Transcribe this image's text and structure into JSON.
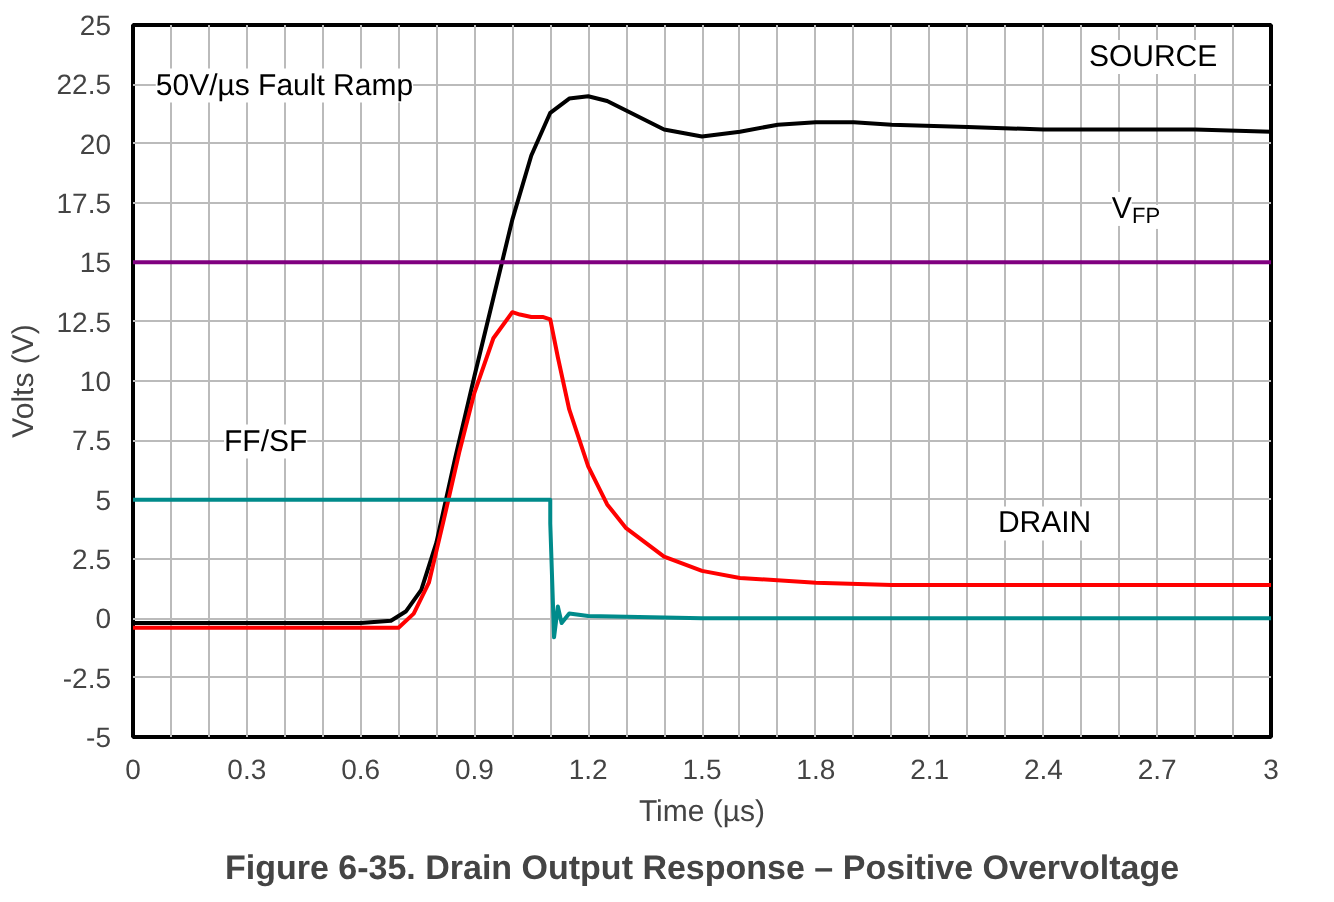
{
  "chart_data": {
    "type": "line",
    "title": "Figure 6-35. Drain Output Response – Positive Overvoltage",
    "xlabel": "Time (µs)",
    "ylabel": "Volts (V)",
    "xlim": [
      0,
      3
    ],
    "ylim": [
      -5,
      25
    ],
    "xticks": [
      0,
      0.3,
      0.6,
      0.9,
      1.2,
      1.5,
      1.8,
      2.1,
      2.4,
      2.7,
      3
    ],
    "yticks": [
      -5,
      -2.5,
      0,
      2.5,
      5,
      7.5,
      10,
      12.5,
      15,
      17.5,
      20,
      22.5,
      25
    ],
    "grid": true,
    "line_style": "solid",
    "series": [
      {
        "name": "SOURCE",
        "color": "#000000",
        "x": [
          0,
          0.2,
          0.4,
          0.6,
          0.68,
          0.72,
          0.76,
          0.8,
          0.85,
          0.9,
          0.95,
          1.0,
          1.05,
          1.1,
          1.15,
          1.2,
          1.25,
          1.3,
          1.4,
          1.5,
          1.6,
          1.7,
          1.8,
          1.9,
          2.0,
          2.2,
          2.4,
          2.6,
          2.8,
          3.0
        ],
        "values": [
          -0.2,
          -0.2,
          -0.2,
          -0.2,
          -0.1,
          0.3,
          1.2,
          3.2,
          6.8,
          10.2,
          13.5,
          16.8,
          19.5,
          21.3,
          21.9,
          22.0,
          21.8,
          21.4,
          20.6,
          20.3,
          20.5,
          20.8,
          20.9,
          20.9,
          20.8,
          20.7,
          20.6,
          20.6,
          20.6,
          20.5
        ]
      },
      {
        "name": "DRAIN",
        "color": "#ff0000",
        "x": [
          0,
          0.2,
          0.4,
          0.6,
          0.7,
          0.74,
          0.78,
          0.82,
          0.86,
          0.9,
          0.95,
          1.0,
          1.02,
          1.05,
          1.08,
          1.1,
          1.12,
          1.15,
          1.2,
          1.25,
          1.3,
          1.4,
          1.5,
          1.6,
          1.8,
          2.0,
          2.4,
          2.8,
          3.0
        ],
        "values": [
          -0.4,
          -0.4,
          -0.4,
          -0.4,
          -0.4,
          0.2,
          1.5,
          4.2,
          7.0,
          9.5,
          11.8,
          12.9,
          12.8,
          12.7,
          12.7,
          12.6,
          11.0,
          8.8,
          6.4,
          4.8,
          3.8,
          2.6,
          2.0,
          1.7,
          1.5,
          1.4,
          1.4,
          1.4,
          1.4
        ]
      },
      {
        "name": "FF/SF",
        "color": "#008b8b",
        "x": [
          0,
          1.1,
          1.1,
          1.11,
          1.12,
          1.13,
          1.15,
          1.2,
          1.5,
          2.0,
          3.0
        ],
        "values": [
          5,
          5,
          4,
          -0.8,
          0.5,
          -0.2,
          0.2,
          0.1,
          0,
          0,
          0
        ]
      }
    ],
    "ref_lines": [
      {
        "axis": "y",
        "value": 15,
        "label": "V$_{FP}$",
        "color": "#800080"
      }
    ],
    "annotations": [
      "50V/µs Fault Ramp"
    ]
  }
}
